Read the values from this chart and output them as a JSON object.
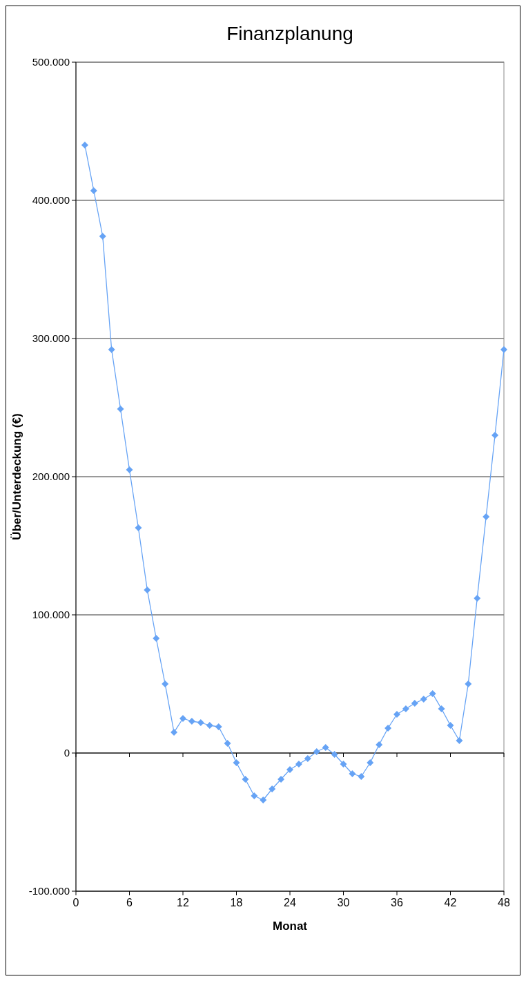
{
  "chart_data": {
    "type": "line",
    "title": "Finanzplanung",
    "xlabel": "Monat",
    "ylabel": "Über/Unterdeckung (€)",
    "x": [
      1,
      2,
      3,
      4,
      5,
      6,
      7,
      8,
      9,
      10,
      11,
      12,
      13,
      14,
      15,
      16,
      17,
      18,
      19,
      20,
      21,
      22,
      23,
      24,
      25,
      26,
      27,
      28,
      29,
      30,
      31,
      32,
      33,
      34,
      35,
      36,
      37,
      38,
      39,
      40,
      41,
      42,
      43,
      44,
      45,
      46,
      47,
      48
    ],
    "series": [
      {
        "color": "#66a3f5",
        "values": [
          440000,
          407000,
          374000,
          292000,
          249000,
          205000,
          163000,
          118000,
          83000,
          50000,
          15000,
          25000,
          23000,
          22000,
          20000,
          19000,
          7000,
          -7000,
          -19000,
          -31000,
          -34000,
          -26000,
          -19000,
          -12000,
          -8000,
          -4000,
          1000,
          4000,
          -1000,
          -8000,
          -15000,
          -17000,
          -7000,
          6000,
          18000,
          28000,
          32000,
          36000,
          39000,
          43000,
          32000,
          20000,
          9000,
          50000,
          112000,
          171000,
          230000,
          292000
        ]
      }
    ],
    "xlim": [
      0,
      48
    ],
    "xticks": [
      0,
      6,
      12,
      18,
      24,
      30,
      36,
      42,
      48
    ],
    "ylim": [
      -100000,
      500000
    ],
    "yticks": [
      {
        "value": -100000,
        "label": "-100.000"
      },
      0,
      {
        "value": 100000,
        "label": "100.000"
      },
      {
        "value": 200000,
        "label": "200.000"
      },
      {
        "value": 300000,
        "label": "300.000"
      },
      {
        "value": 400000,
        "label": "400.000"
      },
      {
        "value": 500000,
        "label": "500.000"
      }
    ],
    "grid": "y",
    "marker": "diamond",
    "line_style": "solid"
  }
}
